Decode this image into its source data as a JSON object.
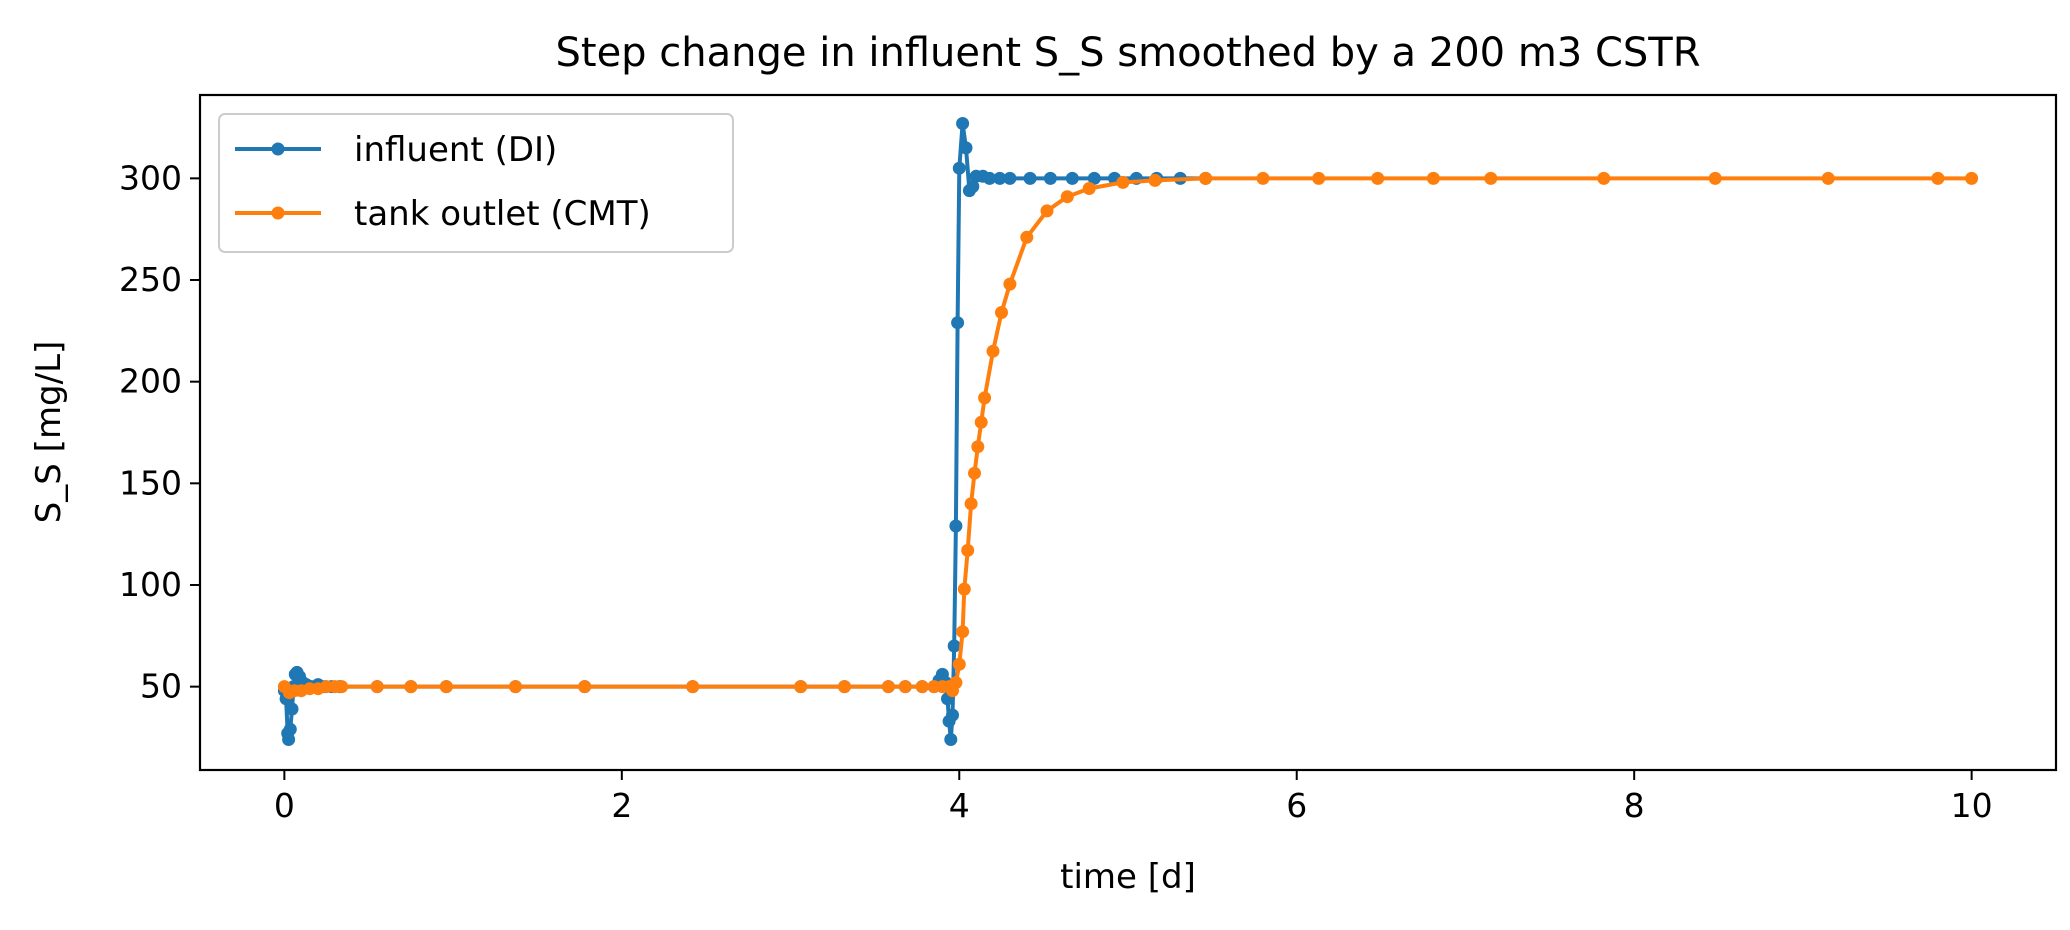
{
  "chart_data": {
    "type": "line",
    "title": "Step change in influent S_S smoothed by a 200 m3 CSTR",
    "xlabel": "time [d]",
    "ylabel": "S_S [mg/L]",
    "xlim": [
      -0.5,
      10.5
    ],
    "ylim": [
      9,
      341
    ],
    "xticks": [
      0,
      2,
      4,
      6,
      8,
      10
    ],
    "yticks": [
      50,
      100,
      150,
      200,
      250,
      300
    ],
    "grid": false,
    "legend_position": "top-left",
    "series": [
      {
        "name": "influent (DI)",
        "color": "#1f77b4",
        "marker": "circle",
        "points": [
          [
            0.0,
            48
          ],
          [
            0.01,
            44
          ],
          [
            0.02,
            27
          ],
          [
            0.025,
            24
          ],
          [
            0.035,
            29
          ],
          [
            0.045,
            39
          ],
          [
            0.055,
            50
          ],
          [
            0.065,
            56
          ],
          [
            0.075,
            57
          ],
          [
            0.09,
            55
          ],
          [
            0.11,
            52
          ],
          [
            0.13,
            51
          ],
          [
            0.16,
            50
          ],
          [
            0.2,
            51
          ],
          [
            0.24,
            50
          ],
          [
            0.28,
            50
          ],
          [
            0.33,
            50
          ],
          [
            0.55,
            50
          ],
          [
            0.75,
            50
          ],
          [
            0.96,
            50
          ],
          [
            1.37,
            50
          ],
          [
            1.78,
            50
          ],
          [
            2.42,
            50
          ],
          [
            3.06,
            50
          ],
          [
            3.32,
            50
          ],
          [
            3.58,
            50
          ],
          [
            3.68,
            50
          ],
          [
            3.78,
            50
          ],
          [
            3.85,
            50
          ],
          [
            3.88,
            53
          ],
          [
            3.9,
            56
          ],
          [
            3.92,
            52
          ],
          [
            3.93,
            44
          ],
          [
            3.94,
            33
          ],
          [
            3.95,
            24
          ],
          [
            3.96,
            36
          ],
          [
            3.97,
            70
          ],
          [
            3.98,
            129
          ],
          [
            3.99,
            229
          ],
          [
            4.0,
            305
          ],
          [
            4.02,
            327
          ],
          [
            4.04,
            315
          ],
          [
            4.06,
            294
          ],
          [
            4.08,
            296
          ],
          [
            4.1,
            301
          ],
          [
            4.14,
            301
          ],
          [
            4.18,
            300
          ],
          [
            4.24,
            300
          ],
          [
            4.3,
            300
          ],
          [
            4.42,
            300
          ],
          [
            4.54,
            300
          ],
          [
            4.67,
            300
          ],
          [
            4.8,
            300
          ],
          [
            4.92,
            300
          ],
          [
            5.05,
            300
          ],
          [
            5.17,
            300
          ],
          [
            5.31,
            300
          ],
          [
            5.46,
            300
          ]
        ]
      },
      {
        "name": "tank outlet (CMT)",
        "color": "#ff7f0e",
        "marker": "circle",
        "points": [
          [
            0.0,
            50
          ],
          [
            0.03,
            47
          ],
          [
            0.06,
            48
          ],
          [
            0.1,
            48
          ],
          [
            0.15,
            49
          ],
          [
            0.2,
            49
          ],
          [
            0.25,
            50
          ],
          [
            0.3,
            50
          ],
          [
            0.34,
            50
          ],
          [
            0.55,
            50
          ],
          [
            0.75,
            50
          ],
          [
            0.96,
            50
          ],
          [
            1.37,
            50
          ],
          [
            1.78,
            50
          ],
          [
            2.42,
            50
          ],
          [
            3.06,
            50
          ],
          [
            3.32,
            50
          ],
          [
            3.58,
            50
          ],
          [
            3.68,
            50
          ],
          [
            3.78,
            50
          ],
          [
            3.85,
            50
          ],
          [
            3.9,
            50
          ],
          [
            3.94,
            50
          ],
          [
            3.96,
            48
          ],
          [
            3.98,
            52
          ],
          [
            4.0,
            61
          ],
          [
            4.02,
            77
          ],
          [
            4.03,
            98
          ],
          [
            4.05,
            117
          ],
          [
            4.07,
            140
          ],
          [
            4.09,
            155
          ],
          [
            4.11,
            168
          ],
          [
            4.13,
            180
          ],
          [
            4.15,
            192
          ],
          [
            4.2,
            215
          ],
          [
            4.25,
            234
          ],
          [
            4.3,
            248
          ],
          [
            4.4,
            271
          ],
          [
            4.52,
            284
          ],
          [
            4.64,
            291
          ],
          [
            4.77,
            295
          ],
          [
            4.97,
            298
          ],
          [
            5.16,
            299
          ],
          [
            5.46,
            300
          ],
          [
            5.8,
            300
          ],
          [
            6.13,
            300
          ],
          [
            6.48,
            300
          ],
          [
            6.81,
            300
          ],
          [
            7.15,
            300
          ],
          [
            7.82,
            300
          ],
          [
            8.48,
            300
          ],
          [
            9.15,
            300
          ],
          [
            9.8,
            300
          ],
          [
            10.0,
            300
          ]
        ]
      }
    ]
  }
}
